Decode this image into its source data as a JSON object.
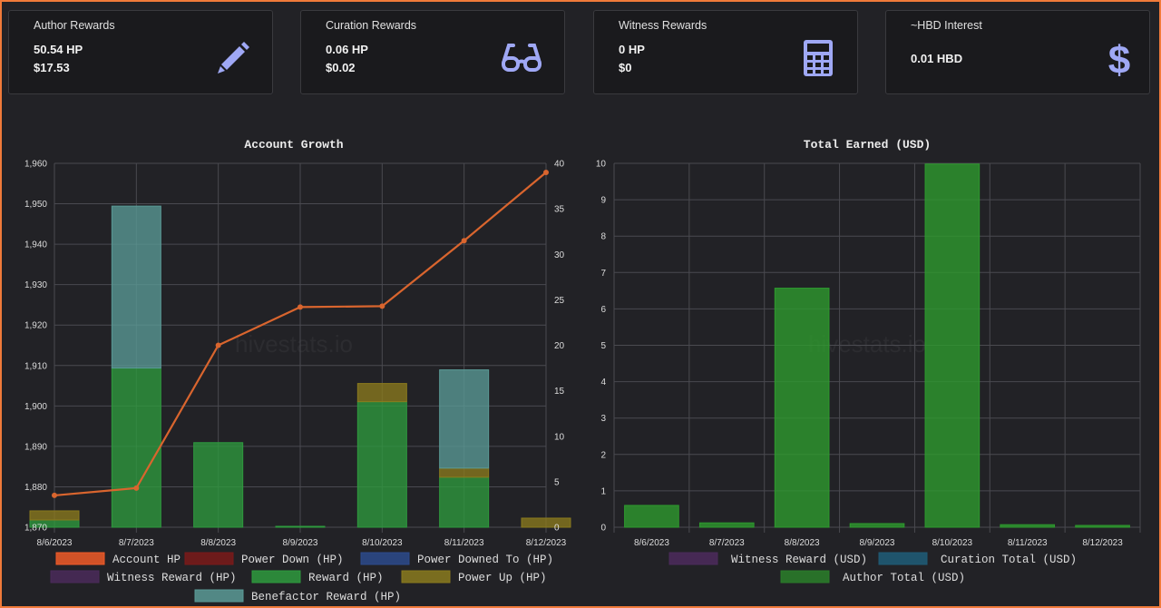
{
  "cards": [
    {
      "title": "Author Rewards",
      "line1": "50.54 HP",
      "line2": "$17.53",
      "icon": "pencil-icon"
    },
    {
      "title": "Curation Rewards",
      "line1": "0.06 HP",
      "line2": "$0.02",
      "icon": "glasses-icon"
    },
    {
      "title": "Witness Rewards",
      "line1": "0 HP",
      "line2": "$0",
      "icon": "calculator-icon"
    },
    {
      "title": "~HBD Interest",
      "line1": "0.01 HBD",
      "line2": "",
      "icon": "dollar-icon"
    }
  ],
  "colors": {
    "accent_icon": "#9fa8f5",
    "account_hp": "#f05a28",
    "power_down": "#7a1a1a",
    "power_downed_to": "#2c4a8c",
    "witness": "#4a2a5a",
    "reward": "#2e9a3e",
    "power_up": "#8a7a1e",
    "benefactor": "#5a9a96",
    "curation": "#1f5a74",
    "author_total": "#2a7a2a"
  },
  "watermark": "hivestats.io",
  "chart_data": [
    {
      "type": "bar",
      "title": "Account Growth",
      "categories": [
        "8/6/2023",
        "8/7/2023",
        "8/8/2023",
        "8/9/2023",
        "8/10/2023",
        "8/11/2023",
        "8/12/2023"
      ],
      "y_left": {
        "min": 1870,
        "max": 1960,
        "ticks": [
          "1,870",
          "1,880",
          "1,890",
          "1,900",
          "1,910",
          "1,920",
          "1,930",
          "1,940",
          "1,950",
          "1,960"
        ]
      },
      "y_right": {
        "min": 0,
        "max": 40,
        "ticks": [
          "0",
          "5",
          "10",
          "15",
          "20",
          "25",
          "30",
          "35",
          "40"
        ]
      },
      "line_series": {
        "name": "Account HP",
        "values": [
          3.5,
          4.3,
          20,
          24.2,
          24.3,
          31.5,
          39
        ]
      },
      "stacked_series": [
        {
          "name": "Reward (HP)",
          "values": [
            0.8,
            17.5,
            9.3,
            0.1,
            13.8,
            5.5,
            0
          ]
        },
        {
          "name": "Power Up (HP)",
          "values": [
            1.0,
            0,
            0,
            0,
            2.0,
            1.0,
            1.0
          ]
        },
        {
          "name": "Benefactor Reward (HP)",
          "values": [
            0,
            17.8,
            0,
            0,
            0,
            10.8,
            0
          ]
        }
      ],
      "legend": [
        {
          "label": "Account HP",
          "color": "#f05a28"
        },
        {
          "label": "Power Down (HP)",
          "color": "#7a1a1a"
        },
        {
          "label": "Power Downed To (HP)",
          "color": "#2c4a8c"
        },
        {
          "label": "Witness Reward (HP)",
          "color": "#4a2a5a"
        },
        {
          "label": "Reward (HP)",
          "color": "#2e9a3e"
        },
        {
          "label": "Power Up (HP)",
          "color": "#8a7a1e"
        },
        {
          "label": "Benefactor Reward (HP)",
          "color": "#5a9a96"
        }
      ],
      "legend_placement": "bottom",
      "grid": true
    },
    {
      "type": "bar",
      "title": "Total Earned (USD)",
      "categories": [
        "8/6/2023",
        "8/7/2023",
        "8/8/2023",
        "8/9/2023",
        "8/10/2023",
        "8/11/2023",
        "8/12/2023"
      ],
      "y_left": {
        "min": 0,
        "max": 10,
        "ticks": [
          "0",
          "1",
          "2",
          "3",
          "4",
          "5",
          "6",
          "7",
          "8",
          "9",
          "10"
        ]
      },
      "series": [
        {
          "name": "Author Total (USD)",
          "values": [
            0.6,
            0.12,
            6.57,
            0.1,
            9.98,
            0.07,
            0.05
          ]
        }
      ],
      "legend": [
        {
          "label": "Witness Reward (USD)",
          "color": "#4a2a5a"
        },
        {
          "label": "Curation Total (USD)",
          "color": "#1f5a74"
        },
        {
          "label": "Author Total (USD)",
          "color": "#2a7a2a"
        }
      ],
      "legend_placement": "bottom",
      "grid": true
    }
  ]
}
